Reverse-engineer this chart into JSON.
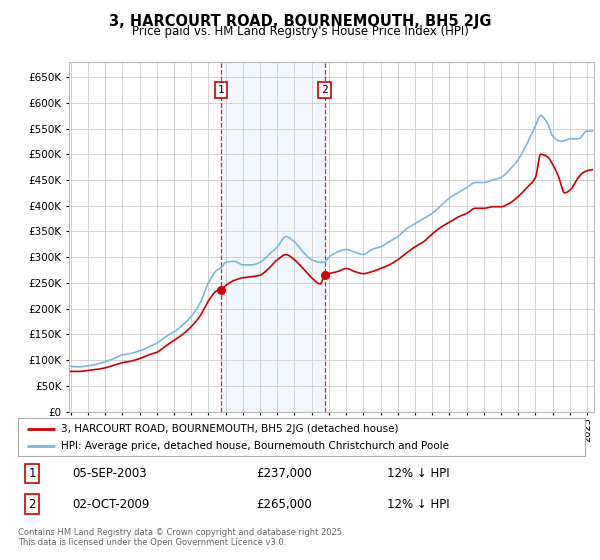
{
  "title": "3, HARCOURT ROAD, BOURNEMOUTH, BH5 2JG",
  "subtitle": "Price paid vs. HM Land Registry's House Price Index (HPI)",
  "legend_line1": "3, HARCOURT ROAD, BOURNEMOUTH, BH5 2JG (detached house)",
  "legend_line2": "HPI: Average price, detached house, Bournemouth Christchurch and Poole",
  "annotation1_label": "1",
  "annotation1_date": "05-SEP-2003",
  "annotation1_price": "£237,000",
  "annotation1_note": "12% ↓ HPI",
  "annotation2_label": "2",
  "annotation2_date": "02-OCT-2009",
  "annotation2_price": "£265,000",
  "annotation2_note": "12% ↓ HPI",
  "footer": "Contains HM Land Registry data © Crown copyright and database right 2025.\nThis data is licensed under the Open Government Licence v3.0.",
  "ylim": [
    0,
    680000
  ],
  "yticks": [
    0,
    50000,
    100000,
    150000,
    200000,
    250000,
    300000,
    350000,
    400000,
    450000,
    500000,
    550000,
    600000,
    650000
  ],
  "x_start_year": 1995,
  "x_end_year": 2025,
  "sale1_year": 2003.75,
  "sale1_price": 237000,
  "sale2_year": 2009.75,
  "sale2_price": 265000,
  "hpi_color": "#7ab8d9",
  "price_color": "#cc0000",
  "grid_color": "#cccccc",
  "shading_color": "#d8eaf7",
  "background_color": "#ffffff",
  "annotation_box_color": "#cc0000"
}
